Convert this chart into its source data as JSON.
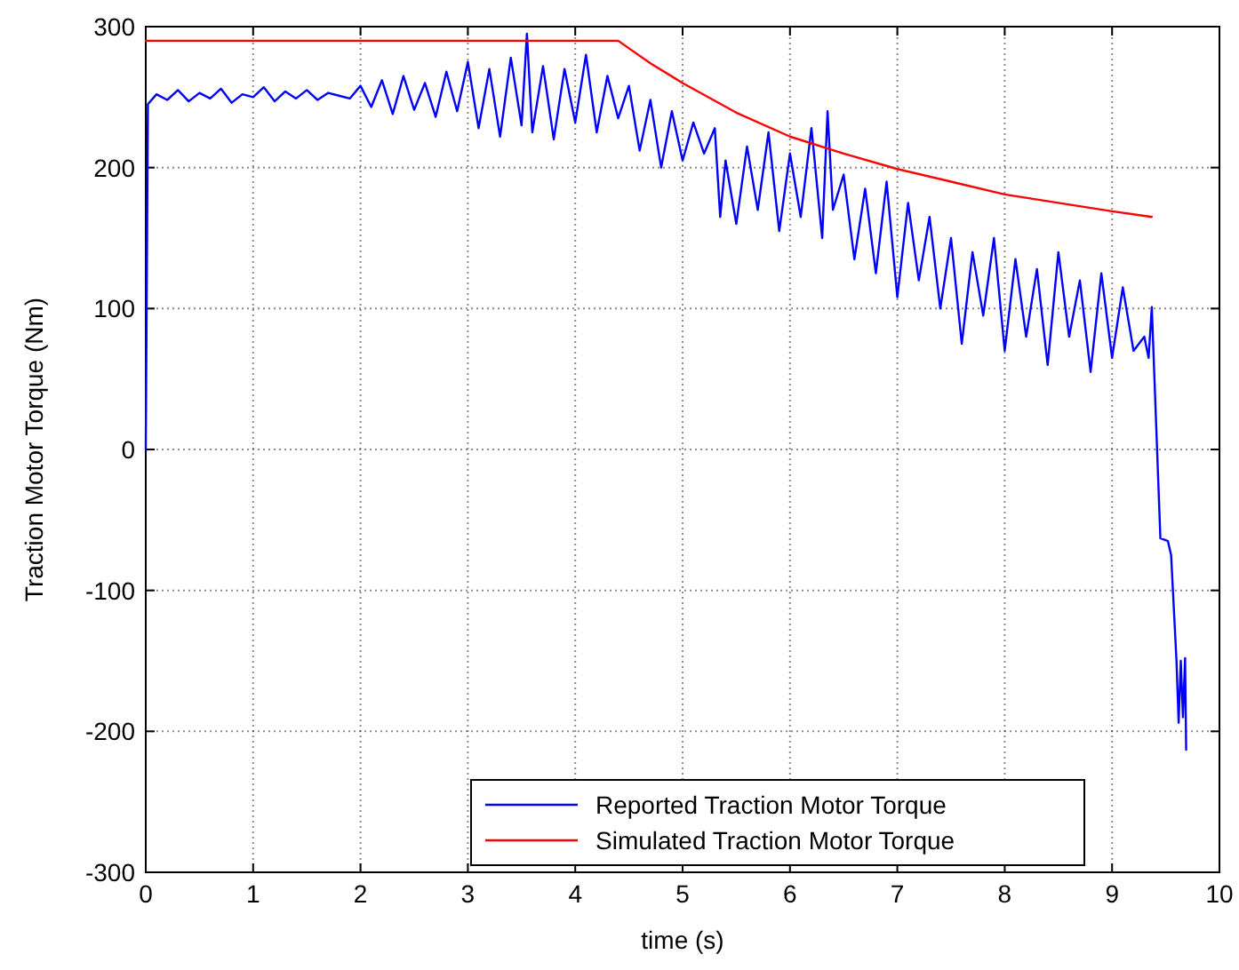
{
  "chart_data": {
    "type": "line",
    "xlabel": "time (s)",
    "ylabel": "Traction Motor Torque (Nm)",
    "xlim": [
      0,
      10
    ],
    "xticks": [
      0,
      1,
      2,
      3,
      4,
      5,
      6,
      7,
      8,
      9,
      10
    ],
    "ylim": [
      -300,
      300
    ],
    "yticks": [
      -300,
      -200,
      -100,
      0,
      100,
      200,
      300
    ],
    "grid": true,
    "legend": "bottom",
    "line_style": "solid",
    "marker": "none",
    "series": [
      {
        "name": "Reported Traction Motor Torque",
        "color": "#0000ff",
        "x": [
          0,
          0.02,
          0.1,
          0.2,
          0.3,
          0.4,
          0.5,
          0.6,
          0.7,
          0.8,
          0.9,
          1.0,
          1.1,
          1.2,
          1.3,
          1.4,
          1.5,
          1.6,
          1.7,
          1.8,
          1.9,
          2.0,
          2.1,
          2.2,
          2.3,
          2.4,
          2.5,
          2.6,
          2.7,
          2.8,
          2.9,
          3.0,
          3.1,
          3.2,
          3.3,
          3.4,
          3.5,
          3.55,
          3.6,
          3.7,
          3.8,
          3.9,
          4.0,
          4.1,
          4.2,
          4.3,
          4.4,
          4.5,
          4.6,
          4.7,
          4.8,
          4.9,
          5.0,
          5.1,
          5.2,
          5.3,
          5.35,
          5.4,
          5.5,
          5.6,
          5.7,
          5.8,
          5.9,
          6.0,
          6.1,
          6.2,
          6.3,
          6.35,
          6.4,
          6.5,
          6.6,
          6.7,
          6.8,
          6.9,
          7.0,
          7.1,
          7.2,
          7.3,
          7.4,
          7.5,
          7.6,
          7.7,
          7.8,
          7.9,
          8.0,
          8.1,
          8.2,
          8.3,
          8.4,
          8.5,
          8.6,
          8.7,
          8.8,
          8.9,
          9.0,
          9.1,
          9.2,
          9.3,
          9.34,
          9.37,
          9.45,
          9.52,
          9.55,
          9.6,
          9.62,
          9.64,
          9.66,
          9.68,
          9.69
        ],
        "values": [
          0,
          245,
          252,
          248,
          255,
          247,
          253,
          249,
          256,
          246,
          252,
          250,
          257,
          247,
          254,
          249,
          255,
          248,
          253,
          251,
          249,
          258,
          243,
          262,
          238,
          265,
          241,
          260,
          236,
          268,
          240,
          275,
          228,
          270,
          222,
          278,
          230,
          295,
          225,
          272,
          220,
          270,
          232,
          280,
          225,
          265,
          235,
          258,
          212,
          248,
          200,
          240,
          205,
          232,
          210,
          228,
          165,
          205,
          160,
          215,
          170,
          225,
          155,
          210,
          165,
          228,
          150,
          240,
          170,
          195,
          135,
          185,
          125,
          190,
          108,
          175,
          120,
          165,
          100,
          150,
          75,
          140,
          95,
          150,
          70,
          135,
          80,
          128,
          60,
          140,
          80,
          120,
          55,
          125,
          65,
          115,
          70,
          80,
          65,
          101,
          -63,
          -65,
          -75,
          -150,
          -194,
          -150,
          -190,
          -148,
          -213
        ]
      },
      {
        "name": "Simulated Traction Motor Torque",
        "color": "#ff0000",
        "x": [
          0,
          4.4,
          4.7,
          5,
          5.5,
          6,
          6.5,
          7,
          7.5,
          8,
          8.5,
          9,
          9.37
        ],
        "values": [
          290,
          290,
          274,
          260,
          239,
          222,
          210,
          199,
          190,
          181,
          175,
          169,
          165
        ]
      }
    ]
  }
}
